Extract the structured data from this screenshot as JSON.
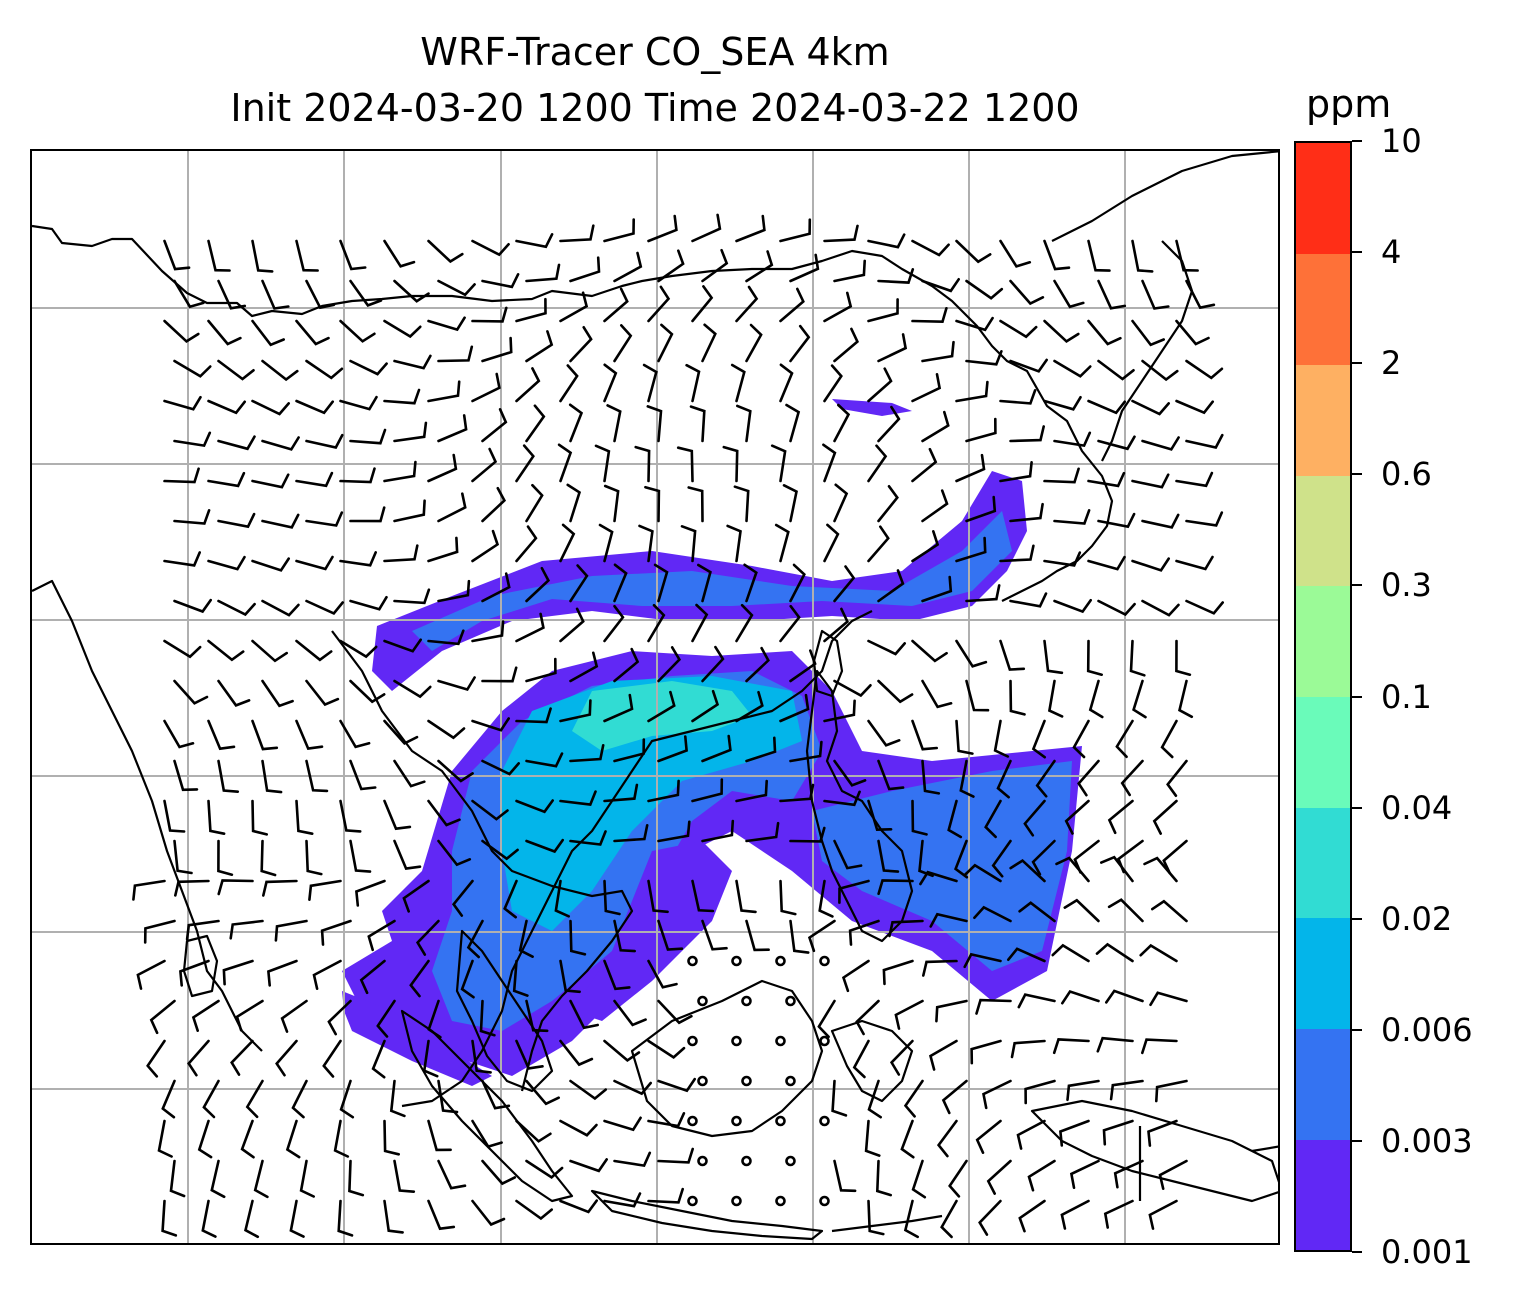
{
  "title": {
    "line1": "WRF-Tracer CO_SEA 4km",
    "line2": "Init 2024-03-20 1200 Time 2024-03-22 1200"
  },
  "colorbar": {
    "unit": "ppm",
    "levels": [
      "0.001",
      "0.003",
      "0.006",
      "0.02",
      "0.04",
      "0.1",
      "0.3",
      "0.6",
      "2",
      "4",
      "10"
    ],
    "colors": [
      "#6128f5",
      "#3473f2",
      "#03b5ea",
      "#31dcd3",
      "#6afbba",
      "#9bfa97",
      "#cfe28a",
      "#feb062",
      "#fe7138",
      "#ff2e17"
    ]
  },
  "map": {
    "gridlines": true,
    "gridline_color": "#b0b0b0",
    "coastline_color": "#000000",
    "barb_color": "#000000",
    "plume_regions": [
      {
        "name": "north-china-band",
        "level_index": 0
      },
      {
        "name": "mainland-southeast-asia-core",
        "level_index": 1
      },
      {
        "name": "philippine-sea-band",
        "level_index": 0
      },
      {
        "name": "gulf-of-thailand-tongue",
        "level_index": 0
      }
    ]
  }
}
